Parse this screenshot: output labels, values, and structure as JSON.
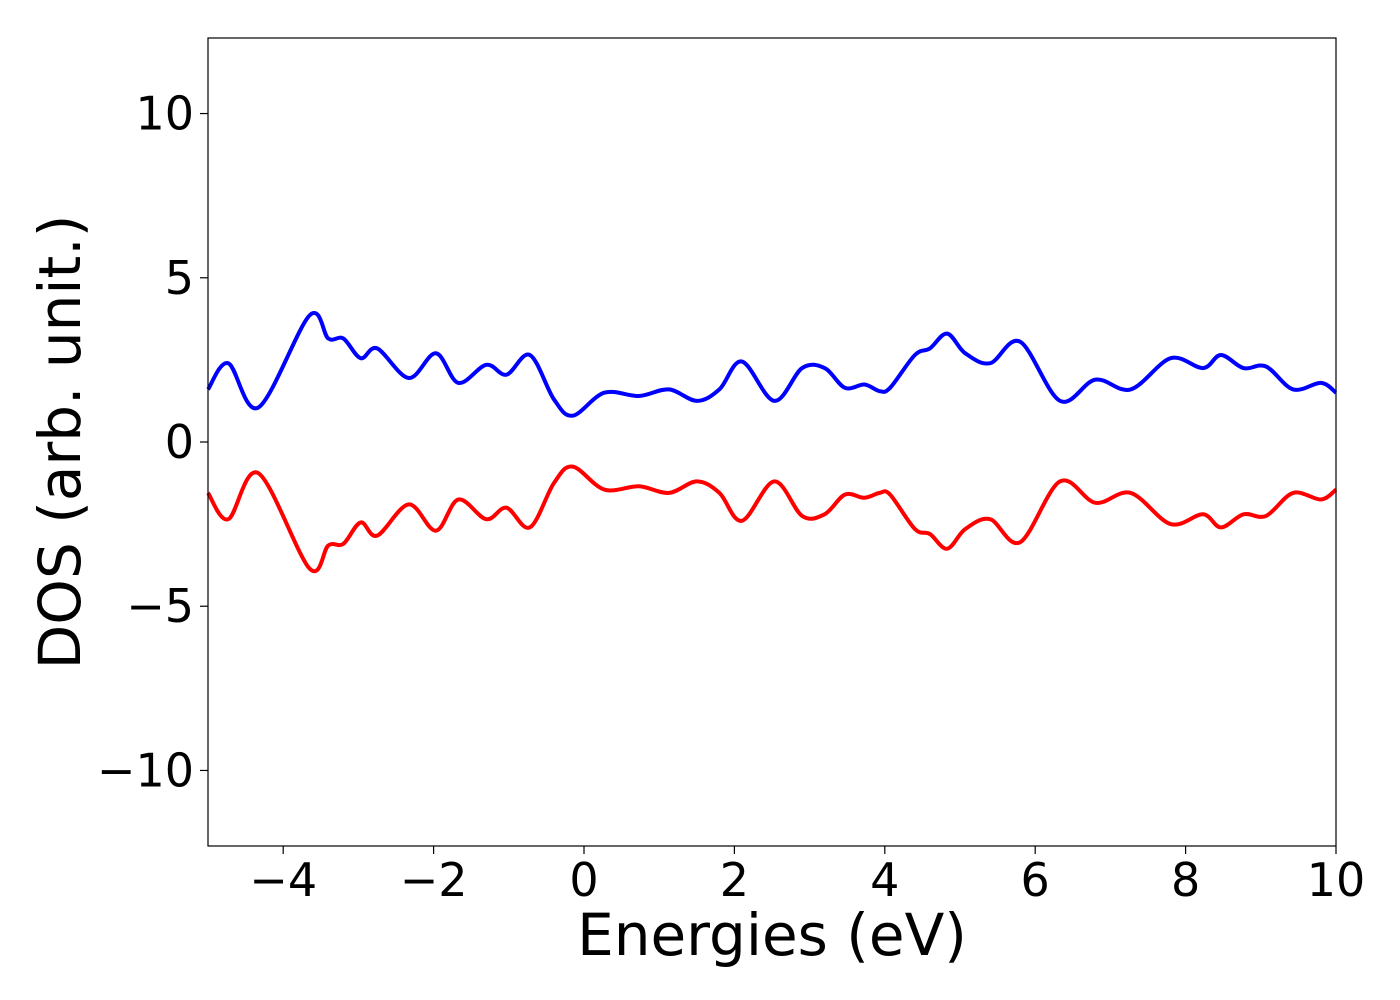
{
  "chart_data": {
    "type": "line",
    "title": "",
    "xlabel": "Energies (eV)",
    "ylabel": "DOS (arb. unit.)",
    "xlim": [
      -5,
      10
    ],
    "ylim": [
      -12.3,
      12.3
    ],
    "xticks": [
      -4,
      -2,
      0,
      2,
      4,
      6,
      8,
      10
    ],
    "xtick_labels": [
      "−4",
      "−2",
      "0",
      "2",
      "4",
      "6",
      "8",
      "10"
    ],
    "yticks": [
      -10,
      -5,
      0,
      5,
      10
    ],
    "ytick_labels": [
      "−10",
      "−5",
      "0",
      "5",
      "10"
    ],
    "grid": false,
    "legend": false,
    "series": [
      {
        "color": "#0000ff",
        "x": [
          -5.0,
          -4.73,
          -4.33,
          -3.65,
          -3.4,
          -3.2,
          -2.97,
          -2.75,
          -2.33,
          -1.97,
          -1.67,
          -1.3,
          -1.03,
          -0.72,
          -0.4,
          -0.15,
          0.27,
          0.73,
          1.13,
          1.5,
          1.8,
          2.1,
          2.53,
          2.9,
          3.2,
          3.47,
          3.73,
          3.93,
          4.07,
          4.4,
          4.6,
          4.83,
          5.07,
          5.4,
          5.8,
          6.33,
          6.8,
          7.27,
          7.8,
          8.23,
          8.47,
          8.77,
          9.07,
          9.43,
          9.8,
          10.0
        ],
        "y": [
          1.6,
          2.4,
          1.05,
          3.85,
          3.15,
          3.15,
          2.55,
          2.85,
          1.95,
          2.7,
          1.8,
          2.35,
          2.05,
          2.65,
          1.3,
          0.8,
          1.5,
          1.4,
          1.6,
          1.25,
          1.6,
          2.45,
          1.25,
          2.25,
          2.25,
          1.65,
          1.75,
          1.55,
          1.65,
          2.65,
          2.85,
          3.3,
          2.7,
          2.4,
          3.05,
          1.25,
          1.9,
          1.6,
          2.55,
          2.25,
          2.65,
          2.25,
          2.3,
          1.6,
          1.8,
          1.5
        ]
      },
      {
        "color": "#ff0000",
        "x": [
          -5.0,
          -4.73,
          -4.33,
          -3.65,
          -3.4,
          -3.2,
          -2.97,
          -2.75,
          -2.33,
          -1.97,
          -1.67,
          -1.3,
          -1.03,
          -0.72,
          -0.4,
          -0.15,
          0.27,
          0.73,
          1.13,
          1.5,
          1.8,
          2.1,
          2.53,
          2.9,
          3.2,
          3.47,
          3.73,
          3.93,
          4.07,
          4.4,
          4.6,
          4.83,
          5.07,
          5.4,
          5.8,
          6.33,
          6.8,
          7.27,
          7.8,
          8.23,
          8.47,
          8.77,
          9.07,
          9.43,
          9.8,
          10.0
        ],
        "y": [
          -1.55,
          -2.35,
          -0.95,
          -3.85,
          -3.15,
          -3.1,
          -2.45,
          -2.85,
          -1.9,
          -2.7,
          -1.75,
          -2.35,
          -2.0,
          -2.6,
          -1.25,
          -0.75,
          -1.45,
          -1.35,
          -1.55,
          -1.2,
          -1.55,
          -2.4,
          -1.2,
          -2.25,
          -2.2,
          -1.6,
          -1.7,
          -1.55,
          -1.6,
          -2.65,
          -2.8,
          -3.25,
          -2.65,
          -2.35,
          -3.05,
          -1.2,
          -1.85,
          -1.55,
          -2.5,
          -2.2,
          -2.6,
          -2.2,
          -2.25,
          -1.55,
          -1.75,
          -1.45
        ]
      }
    ]
  }
}
